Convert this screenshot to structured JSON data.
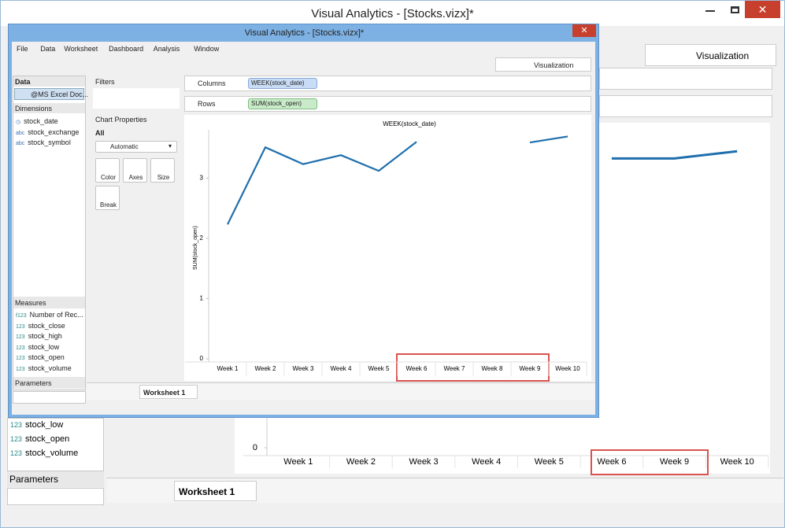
{
  "back_window": {
    "title": "Visual Analytics - [Stocks.vizx]*",
    "tab": "Visualization",
    "measures": [
      {
        "icon": "123",
        "name": "stock_low"
      },
      {
        "icon": "123",
        "name": "stock_open"
      },
      {
        "icon": "123",
        "name": "stock_volume"
      }
    ],
    "parameters_label": "Parameters",
    "sheet_tab": "Worksheet 1",
    "chart": {
      "type": "line",
      "categories": [
        "Week 1",
        "Week 2",
        "Week 3",
        "Week 4",
        "Week 5",
        "Week 6",
        "Week 9",
        "Week 10"
      ],
      "values": [
        null,
        null,
        null,
        null,
        null,
        3.6,
        3.6,
        3.69
      ],
      "color": "#1f6fad",
      "ylim": [
        0,
        3.8
      ],
      "yticks": [
        0
      ]
    }
  },
  "front_window": {
    "title": "Visual Analytics - [Stocks.vizx]*",
    "menu": [
      "File",
      "Data",
      "Worksheet",
      "Dashboard",
      "Analysis",
      "Window"
    ],
    "tab": "Visualization",
    "data_label": "Data",
    "source": "@MS Excel Doc...",
    "dimensions_label": "Dimensions",
    "dimensions": [
      {
        "icon": "◷",
        "name": "stock_date"
      },
      {
        "icon": "abc",
        "name": "stock_exchange"
      },
      {
        "icon": "abc",
        "name": "stock_symbol"
      }
    ],
    "measures_label": "Measures",
    "measures": [
      {
        "icon": "f123",
        "name": "Number of Rec..."
      },
      {
        "icon": "123",
        "name": "stock_close"
      },
      {
        "icon": "123",
        "name": "stock_high"
      },
      {
        "icon": "123",
        "name": "stock_low"
      },
      {
        "icon": "123",
        "name": "stock_open"
      },
      {
        "icon": "123",
        "name": "stock_volume"
      }
    ],
    "parameters_label": "Parameters",
    "filters_label": "Filters",
    "chart_properties_label": "Chart Properties",
    "all_label": "All",
    "mark_type": "Automatic",
    "buttons": [
      "Color",
      "Axes",
      "Size",
      "Break"
    ],
    "columns_label": "Columns",
    "columns_pill": "WEEK(stock_date)",
    "rows_label": "Rows",
    "rows_pill": "SUM(stock_open)",
    "sheet_tab": "Worksheet 1",
    "chart": {
      "type": "line",
      "title": "WEEK(stock_date)",
      "y_label": "SUM(stock_open)",
      "categories": [
        "Week 1",
        "Week 2",
        "Week 3",
        "Week 4",
        "Week 5",
        "Week 6",
        "Week 7",
        "Week 8",
        "Week 9",
        "Week 10"
      ],
      "values": [
        2.23,
        3.51,
        3.23,
        3.38,
        3.12,
        3.6,
        null,
        null,
        3.59,
        3.69
      ],
      "color": "#1f6fad",
      "ylim": [
        0,
        3.8
      ],
      "yticks": [
        0,
        1,
        2,
        3
      ]
    }
  }
}
